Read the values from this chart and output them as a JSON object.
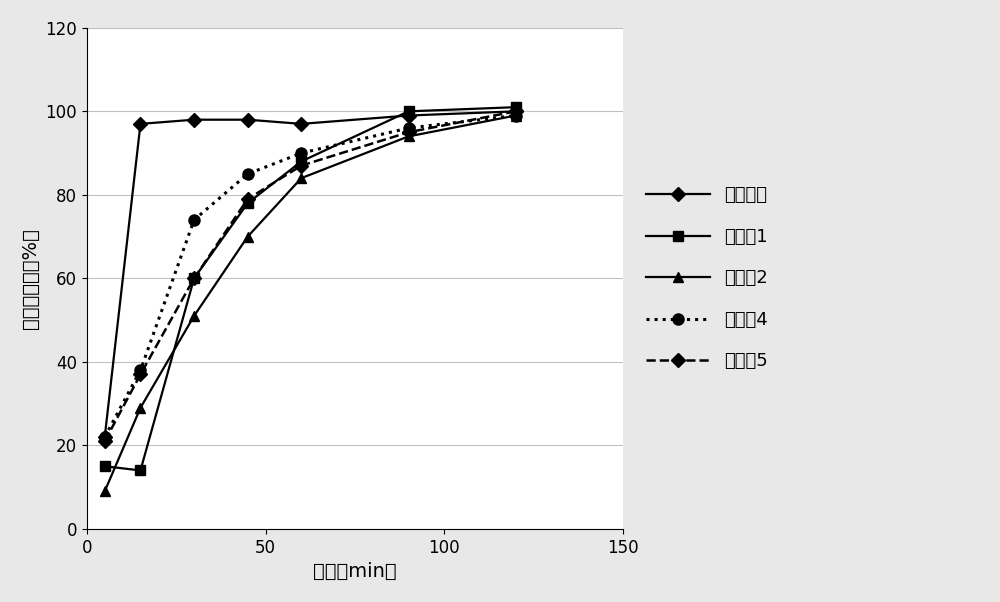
{
  "series": [
    {
      "label": "参比制剂",
      "x": [
        5,
        15,
        30,
        45,
        60,
        90,
        120
      ],
      "y": [
        22,
        97,
        98,
        98,
        97,
        99,
        100
      ],
      "color": "#000000",
      "linestyle": "-",
      "marker": "D",
      "markersize": 7,
      "linewidth": 1.6,
      "zorder": 5
    },
    {
      "label": "实施夃1",
      "x": [
        5,
        15,
        30,
        45,
        60,
        90,
        120
      ],
      "y": [
        15,
        14,
        60,
        78,
        88,
        100,
        101
      ],
      "color": "#000000",
      "linestyle": "-",
      "marker": "s",
      "markersize": 7,
      "linewidth": 1.6,
      "zorder": 4
    },
    {
      "label": "实施夃2",
      "x": [
        5,
        15,
        30,
        45,
        60,
        90,
        120
      ],
      "y": [
        9,
        29,
        51,
        70,
        84,
        94,
        99
      ],
      "color": "#000000",
      "linestyle": "-",
      "marker": "^",
      "markersize": 7,
      "linewidth": 1.6,
      "zorder": 3
    },
    {
      "label": "实施夃4",
      "x": [
        5,
        15,
        30,
        45,
        60,
        90,
        120
      ],
      "y": [
        22,
        38,
        74,
        85,
        90,
        96,
        99
      ],
      "color": "#000000",
      "linestyle": ":",
      "marker": "o",
      "markersize": 8,
      "linewidth": 2.2,
      "zorder": 6
    },
    {
      "label": "实施夃5",
      "x": [
        5,
        15,
        30,
        45,
        60,
        90,
        120
      ],
      "y": [
        21,
        37,
        60,
        79,
        87,
        95,
        100
      ],
      "color": "#000000",
      "linestyle": "--",
      "marker": "D",
      "markersize": 7,
      "linewidth": 1.8,
      "zorder": 4
    }
  ],
  "xlabel": "时间（min）",
  "ylabel": "累积溶出度（%）",
  "xlim": [
    0,
    150
  ],
  "ylim": [
    0,
    120
  ],
  "xticks": [
    0,
    50,
    100,
    150
  ],
  "yticks": [
    0,
    20,
    40,
    60,
    80,
    100,
    120
  ],
  "grid_color": "#c0c0c0",
  "background_color": "#e8e8e8",
  "plot_bg_color": "#ffffff",
  "legend_fontsize": 13,
  "axis_label_fontsize": 14,
  "tick_fontsize": 12
}
